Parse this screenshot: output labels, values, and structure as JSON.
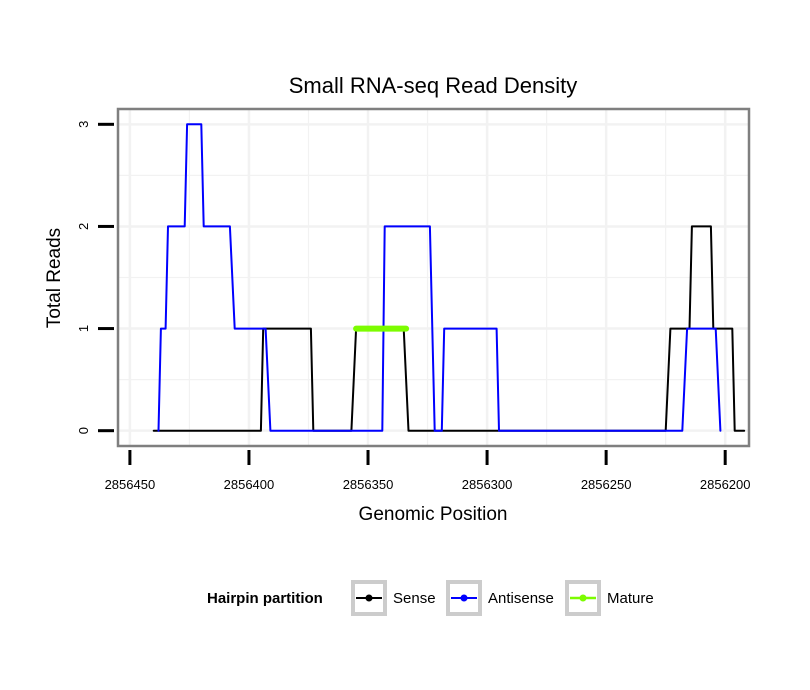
{
  "chart_data": {
    "type": "line",
    "title": "Small RNA-seq Read Density",
    "xlabel": "Genomic Position",
    "ylabel": "Total Reads",
    "xlim": [
      2856455,
      2856190
    ],
    "ylim": [
      -0.15,
      3.15
    ],
    "x_reversed": true,
    "grid": true,
    "x_ticks": [
      2856450,
      2856400,
      2856350,
      2856300,
      2856250,
      2856200
    ],
    "x_tick_labels": [
      "2856450",
      "2856400",
      "2856350",
      "2856300",
      "2856250",
      "2856200"
    ],
    "y_ticks": [
      0,
      1,
      2,
      3
    ],
    "y_tick_labels": [
      "0",
      "1",
      "2",
      "3"
    ],
    "legend": {
      "title": "Hairpin partition",
      "placement": "bottom"
    },
    "series": [
      {
        "name": "Sense",
        "color": "#000000",
        "line_width": 2,
        "points": [
          [
            2856440,
            0
          ],
          [
            2856395,
            0
          ],
          [
            2856394,
            1
          ],
          [
            2856374,
            1
          ],
          [
            2856373,
            0
          ],
          [
            2856357,
            0
          ],
          [
            2856355,
            1
          ],
          [
            2856335,
            1
          ],
          [
            2856333,
            0
          ],
          [
            2856225,
            0
          ],
          [
            2856223,
            1
          ],
          [
            2856215,
            1
          ],
          [
            2856214,
            2
          ],
          [
            2856206,
            2
          ],
          [
            2856205,
            1
          ],
          [
            2856197,
            1
          ],
          [
            2856196,
            0
          ],
          [
            2856192,
            0
          ]
        ]
      },
      {
        "name": "Antisense",
        "color": "#0000ff",
        "line_width": 2,
        "points": [
          [
            2856438,
            0
          ],
          [
            2856437,
            1
          ],
          [
            2856435,
            1
          ],
          [
            2856434,
            2
          ],
          [
            2856427,
            2
          ],
          [
            2856426,
            3
          ],
          [
            2856420,
            3
          ],
          [
            2856419,
            2
          ],
          [
            2856408,
            2
          ],
          [
            2856406,
            1
          ],
          [
            2856393,
            1
          ],
          [
            2856391,
            0
          ],
          [
            2856344,
            0
          ],
          [
            2856343,
            2
          ],
          [
            2856324,
            2
          ],
          [
            2856322,
            0
          ],
          [
            2856319,
            0
          ],
          [
            2856318,
            1
          ],
          [
            2856296,
            1
          ],
          [
            2856295,
            0
          ],
          [
            2856218,
            0
          ],
          [
            2856216,
            1
          ],
          [
            2856204,
            1
          ],
          [
            2856202,
            0
          ]
        ]
      },
      {
        "name": "Mature",
        "color": "#7cfc00",
        "line_width": 6,
        "points": [
          [
            2856355,
            1
          ],
          [
            2856334,
            1
          ]
        ]
      }
    ]
  }
}
